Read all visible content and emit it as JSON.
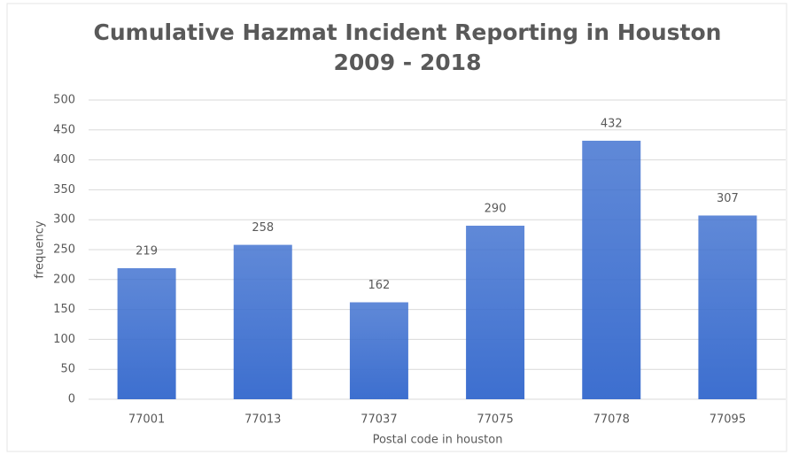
{
  "chart_data": {
    "type": "bar",
    "title": "Cumulative Hazmat Incident Reporting in Houston 2009 - 2018",
    "x_label": "Postal code in houston",
    "y_label": "frequency",
    "categories": [
      "77001",
      "77013",
      "77037",
      "77075",
      "77078",
      "77095"
    ],
    "values": [
      219,
      258,
      162,
      290,
      432,
      307
    ],
    "color": "#3d6fcf",
    "ylim": [
      0,
      500
    ],
    "yticks": [
      0,
      50,
      100,
      150,
      200,
      250,
      300,
      350,
      400,
      450,
      500
    ],
    "grid": true
  }
}
